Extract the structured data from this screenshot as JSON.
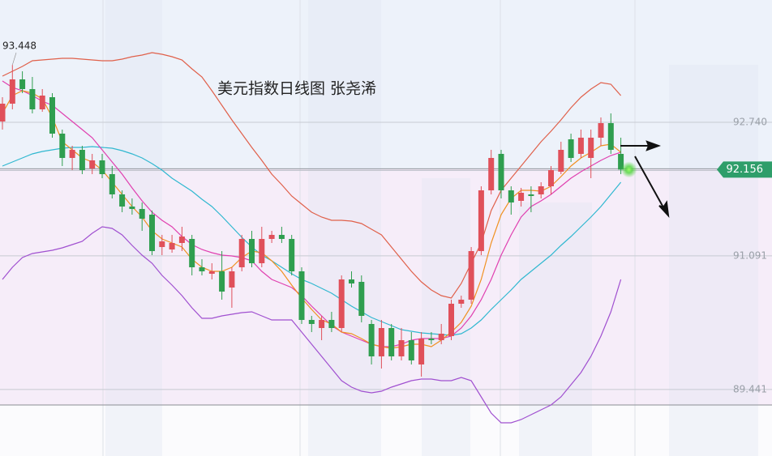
{
  "chart_data": {
    "type": "candlestick",
    "title": "美元指数日线图 张尧浠",
    "ylim": [
      88.62,
      94.25
    ],
    "yticks": [
      {
        "value": 92.74,
        "label": "92.740"
      },
      91.091,
      89.441
    ],
    "grid": true,
    "high_label": 93.448,
    "current_price": 92.156,
    "up_color": "#e0505a",
    "down_color": "#2f9e4f",
    "open": [
      92.75,
      92.97,
      93.27,
      93.15,
      92.9,
      93.05,
      92.6,
      92.3,
      92.4,
      92.17,
      92.27,
      92.1,
      91.85,
      91.7,
      91.67,
      91.6,
      91.2,
      91.17,
      91.25,
      91.3,
      90.95,
      90.87,
      90.9,
      90.7,
      90.95,
      91.3,
      91.0,
      91.3,
      91.35,
      91.3,
      90.9,
      90.3,
      90.2,
      90.3,
      90.2,
      90.8,
      90.77,
      90.25,
      89.85,
      90.2,
      89.85,
      90.05,
      89.75,
      90.07,
      90.05,
      90.1,
      90.5,
      90.55,
      91.15,
      91.9,
      92.35,
      91.9,
      91.77,
      91.85,
      91.85,
      91.95,
      92.13,
      92.53,
      92.35,
      92.3,
      92.55,
      92.73,
      92.35
    ],
    "close": [
      92.97,
      93.27,
      93.15,
      92.9,
      93.07,
      92.6,
      92.3,
      92.4,
      92.15,
      92.27,
      92.1,
      91.85,
      91.7,
      91.67,
      91.55,
      91.15,
      91.27,
      91.25,
      91.33,
      90.95,
      90.9,
      90.9,
      90.65,
      90.9,
      91.3,
      91.0,
      91.3,
      91.35,
      91.3,
      90.9,
      90.3,
      90.25,
      90.3,
      90.2,
      90.8,
      90.75,
      90.35,
      89.85,
      90.2,
      89.85,
      90.05,
      89.8,
      90.07,
      90.05,
      90.13,
      90.5,
      90.55,
      91.15,
      91.9,
      92.3,
      91.9,
      91.75,
      91.87,
      91.83,
      91.95,
      92.15,
      92.4,
      92.3,
      92.55,
      92.55,
      92.73,
      92.4,
      92.156
    ],
    "high": [
      93.05,
      93.448,
      93.37,
      93.3,
      93.15,
      93.1,
      92.65,
      92.45,
      92.45,
      92.35,
      92.35,
      92.2,
      91.9,
      91.8,
      91.75,
      91.65,
      91.35,
      91.35,
      91.45,
      91.35,
      91.05,
      91.0,
      91.15,
      90.95,
      91.35,
      91.4,
      91.45,
      91.4,
      91.45,
      91.35,
      90.95,
      90.35,
      90.35,
      90.4,
      90.85,
      90.9,
      90.85,
      90.3,
      90.3,
      90.25,
      90.2,
      90.15,
      90.15,
      90.15,
      90.25,
      90.55,
      90.6,
      91.2,
      91.95,
      92.4,
      92.4,
      91.95,
      91.93,
      91.95,
      92.0,
      92.2,
      92.5,
      92.6,
      92.65,
      92.65,
      92.8,
      92.85,
      92.55
    ],
    "low": [
      92.65,
      92.9,
      93.1,
      92.85,
      92.87,
      92.55,
      92.2,
      92.15,
      92.1,
      92.1,
      92.05,
      91.8,
      91.63,
      91.6,
      91.4,
      91.1,
      91.1,
      91.13,
      91.15,
      90.85,
      90.85,
      90.8,
      90.55,
      90.45,
      90.9,
      90.95,
      90.95,
      91.25,
      91.25,
      90.85,
      90.25,
      90.15,
      90.05,
      90.15,
      90.15,
      90.7,
      90.27,
      89.75,
      89.7,
      89.8,
      89.8,
      89.75,
      89.6,
      90.0,
      90.0,
      90.05,
      90.45,
      90.5,
      91.1,
      91.85,
      91.8,
      91.6,
      91.7,
      91.63,
      91.8,
      91.85,
      92.1,
      92.25,
      92.3,
      92.05,
      92.45,
      92.35,
      92.1
    ],
    "series": [
      {
        "color": "#e0604a",
        "values": [
          93.31,
          93.37,
          93.43,
          93.5,
          93.51,
          93.52,
          93.53,
          93.53,
          93.52,
          93.51,
          93.5,
          93.5,
          93.52,
          93.55,
          93.57,
          93.6,
          93.58,
          93.55,
          93.51,
          93.4,
          93.3,
          93.13,
          92.95,
          92.77,
          92.6,
          92.43,
          92.27,
          92.1,
          91.97,
          91.83,
          91.73,
          91.63,
          91.57,
          91.53,
          91.53,
          91.52,
          91.49,
          91.42,
          91.35,
          91.2,
          91.05,
          90.9,
          90.77,
          90.67,
          90.6,
          90.57,
          90.75,
          91.0,
          91.25,
          91.65,
          91.9,
          92.05,
          92.2,
          92.35,
          92.5,
          92.63,
          92.77,
          92.92,
          93.05,
          93.15,
          93.23,
          93.21,
          93.07
        ]
      },
      {
        "color": "#a050d0",
        "values": [
          90.8,
          90.95,
          91.07,
          91.12,
          91.14,
          91.16,
          91.19,
          91.23,
          91.27,
          91.37,
          91.45,
          91.43,
          91.35,
          91.22,
          91.1,
          91.0,
          90.85,
          90.73,
          90.6,
          90.45,
          90.32,
          90.32,
          90.35,
          90.37,
          90.39,
          90.4,
          90.35,
          90.3,
          90.3,
          90.3,
          90.15,
          90.0,
          89.85,
          89.7,
          89.55,
          89.47,
          89.42,
          89.4,
          89.42,
          89.47,
          89.51,
          89.55,
          89.57,
          89.57,
          89.55,
          89.55,
          89.59,
          89.55,
          89.35,
          89.15,
          89.03,
          89.03,
          89.07,
          89.13,
          89.19,
          89.25,
          89.35,
          89.5,
          89.65,
          89.85,
          90.1,
          90.4,
          90.8
        ]
      },
      {
        "color": "#30b8d0",
        "values": [
          92.2,
          92.25,
          92.3,
          92.35,
          92.38,
          92.4,
          92.42,
          92.43,
          92.43,
          92.44,
          92.43,
          92.42,
          92.39,
          92.35,
          92.3,
          92.23,
          92.15,
          92.05,
          91.97,
          91.89,
          91.79,
          91.7,
          91.58,
          91.45,
          91.32,
          91.2,
          91.1,
          91.03,
          90.95,
          90.87,
          90.8,
          90.75,
          90.69,
          90.63,
          90.55,
          90.47,
          90.4,
          90.33,
          90.28,
          90.23,
          90.18,
          90.16,
          90.14,
          90.13,
          90.12,
          90.11,
          90.13,
          90.2,
          90.3,
          90.43,
          90.55,
          90.67,
          90.8,
          90.9,
          91.0,
          91.1,
          91.22,
          91.33,
          91.45,
          91.57,
          91.7,
          91.85,
          92.0
        ]
      },
      {
        "color": "#e040b0",
        "values": [
          93.25,
          93.17,
          93.13,
          93.07,
          93.0,
          92.95,
          92.85,
          92.75,
          92.65,
          92.55,
          92.4,
          92.25,
          92.1,
          91.93,
          91.77,
          91.63,
          91.53,
          91.45,
          91.33,
          91.23,
          91.17,
          91.13,
          91.1,
          91.09,
          91.07,
          91.03,
          90.9,
          90.8,
          90.75,
          90.7,
          90.6,
          90.47,
          90.35,
          90.23,
          90.15,
          90.1,
          90.05,
          90.0,
          89.97,
          89.97,
          90.0,
          90.05,
          90.07,
          90.07,
          90.07,
          90.1,
          90.2,
          90.35,
          90.55,
          90.8,
          91.1,
          91.35,
          91.57,
          91.7,
          91.77,
          91.85,
          91.95,
          92.05,
          92.13,
          92.2,
          92.27,
          92.33,
          92.37
        ]
      },
      {
        "color": "#f09020",
        "values": [
          92.85,
          93.07,
          93.13,
          93.1,
          93.03,
          92.8,
          92.5,
          92.4,
          92.3,
          92.25,
          92.15,
          92.0,
          91.85,
          91.7,
          91.57,
          91.4,
          91.3,
          91.25,
          91.2,
          91.05,
          90.95,
          90.9,
          90.9,
          90.95,
          91.07,
          91.15,
          91.13,
          91.03,
          90.9,
          90.73,
          90.57,
          90.43,
          90.3,
          90.25,
          90.15,
          90.13,
          90.07,
          90.0,
          89.97,
          89.95,
          89.97,
          90.0,
          90.0,
          89.97,
          90.05,
          90.15,
          90.27,
          90.47,
          90.8,
          91.25,
          91.6,
          91.8,
          91.9,
          91.9,
          91.89,
          91.95,
          92.07,
          92.2,
          92.3,
          92.37,
          92.45,
          92.47,
          92.37
        ]
      }
    ]
  }
}
